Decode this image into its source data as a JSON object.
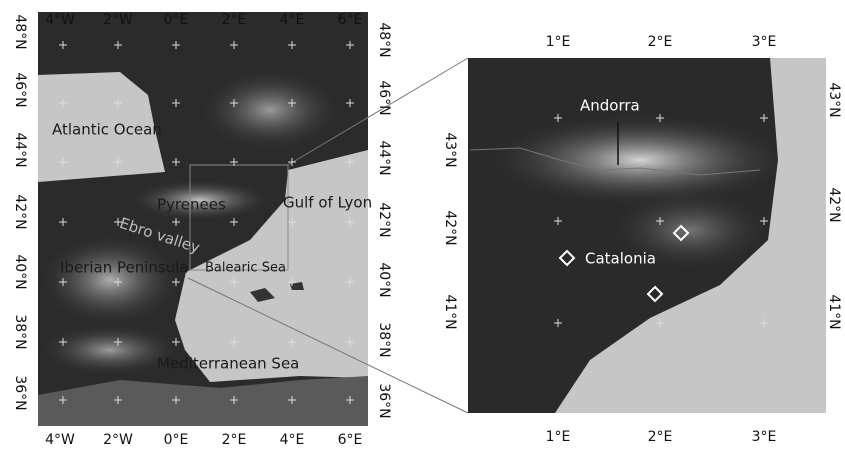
{
  "left_map": {
    "top_labels": [
      "4°W",
      "2°W",
      "0°E",
      "2°E",
      "4°E",
      "6°E"
    ],
    "bottom_labels": [
      "4°W",
      "2°W",
      "0°E",
      "2°E",
      "4°E",
      "6°E"
    ],
    "left_labels": [
      "48°N",
      "46°N",
      "44°N",
      "42°N",
      "40°N",
      "38°N",
      "36°N"
    ],
    "right_labels": [
      "48°N",
      "46°N",
      "44°N",
      "42°N",
      "40°N",
      "38°N",
      "36°N"
    ],
    "places": [
      "Atlantic Ocean",
      "Pyrenees",
      "Gulf of Lyon",
      "Ebro valley",
      "Iberian Peninsula",
      "Balearic Sea",
      "Mediterranean Sea"
    ]
  },
  "right_map": {
    "top_labels": [
      "1°E",
      "2°E",
      "3°E"
    ],
    "bottom_labels": [
      "1°E",
      "2°E",
      "3°E"
    ],
    "left_labels": [
      "43°N",
      "42°N",
      "41°N"
    ],
    "right_labels": [
      "43°N",
      "42°N",
      "41°N"
    ],
    "places": [
      "Andorra",
      "Catalonia"
    ]
  }
}
